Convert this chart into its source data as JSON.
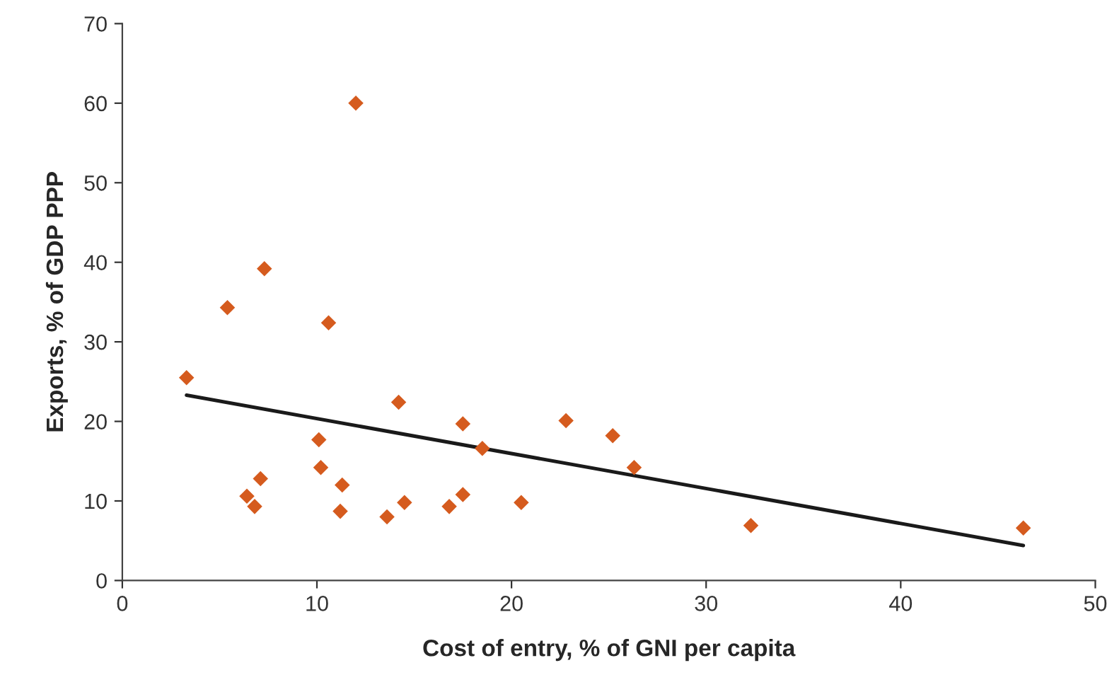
{
  "chart_data": {
    "type": "scatter",
    "xlabel": "Cost of entry, % of GNI per capita",
    "ylabel": "Exports, % of GDP PPP",
    "xlim": [
      0,
      50
    ],
    "xticks": [
      0,
      10,
      20,
      30,
      40,
      50
    ],
    "ylim": [
      0,
      70
    ],
    "yticks": [
      0,
      10,
      20,
      30,
      40,
      50,
      60,
      70
    ],
    "grid": false,
    "legend": false,
    "marker": "diamond",
    "series": [
      {
        "color": "#d55b1e",
        "x": [
          3.3,
          5.4,
          7.3,
          6.4,
          6.8,
          7.1,
          10.1,
          10.2,
          10.6,
          11.3,
          11.2,
          12.0,
          13.6,
          14.2,
          14.5,
          16.8,
          17.5,
          17.5,
          18.5,
          20.5,
          22.8,
          25.2,
          26.3,
          32.3,
          46.3
        ],
        "values": [
          25.5,
          34.3,
          39.2,
          10.6,
          9.3,
          12.8,
          17.7,
          14.2,
          32.4,
          12.0,
          8.7,
          60.0,
          8.0,
          22.4,
          9.8,
          9.3,
          19.7,
          10.8,
          16.6,
          9.8,
          20.1,
          18.2,
          14.2,
          6.9,
          6.6
        ]
      },
      {
        "type": "line",
        "color": "#1a1a1a",
        "marker": "none",
        "x": [
          3.3,
          46.3
        ],
        "values": [
          23.3,
          4.4
        ]
      }
    ]
  }
}
